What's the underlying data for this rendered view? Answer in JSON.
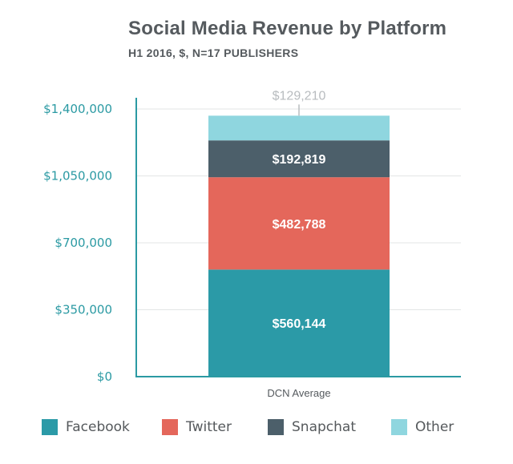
{
  "chart_data": {
    "type": "bar",
    "stacked": true,
    "title": "Social Media Revenue by Platform",
    "subtitle": "H1 2016, $, N=17 PUBLISHERS",
    "categories": [
      "DCN Average"
    ],
    "series": [
      {
        "name": "Facebook",
        "values": [
          560144
        ],
        "label": "$560,144",
        "color": "#2b9aa7"
      },
      {
        "name": "Twitter",
        "values": [
          482788
        ],
        "label": "$482,788",
        "color": "#e4675b"
      },
      {
        "name": "Snapchat",
        "values": [
          192819
        ],
        "label": "$192,819",
        "color": "#4c5f6a"
      },
      {
        "name": "Other",
        "values": [
          129210
        ],
        "label": "$129,210",
        "color": "#8fd6df"
      }
    ],
    "yticks": [
      0,
      350000,
      700000,
      1050000,
      1400000
    ],
    "ytick_labels": [
      "$0",
      "$350,000",
      "$700,000",
      "$1,050,000",
      "$1,400,000"
    ],
    "ylim": [
      0,
      1400000
    ],
    "xlabel": "",
    "ylabel": "",
    "grid": true,
    "legend": "bottom"
  }
}
